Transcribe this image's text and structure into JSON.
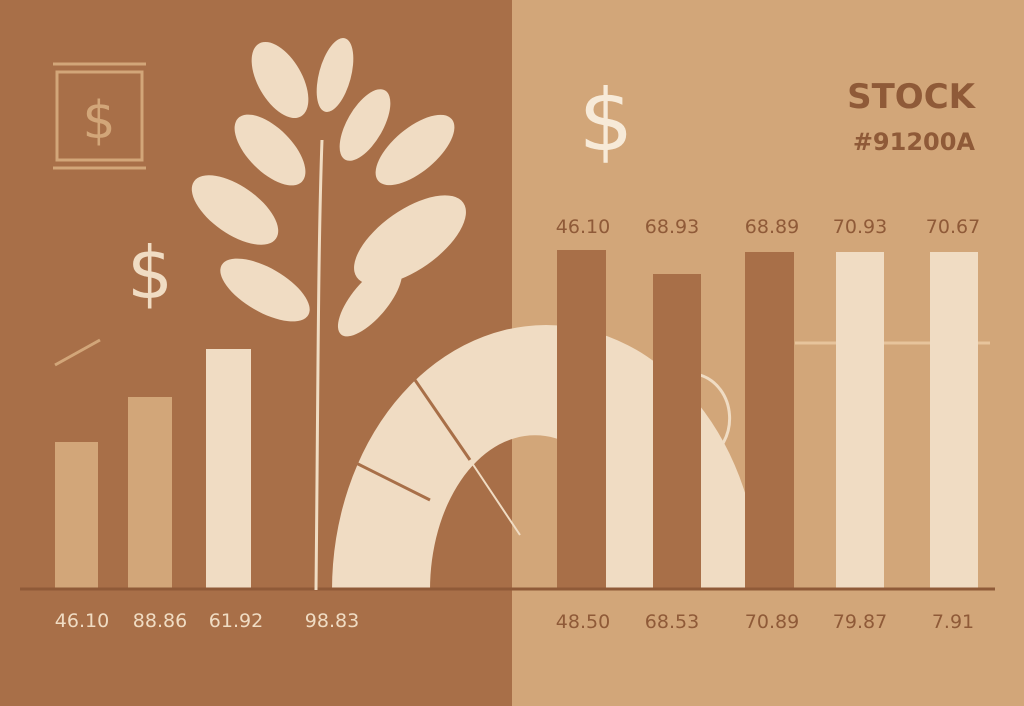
{
  "header": {
    "title": "STOCK",
    "code": "#91200A"
  },
  "dollar_signs": [
    "$",
    "$",
    "$"
  ],
  "left_labels": [
    "46.10",
    "88.86",
    "61.92",
    "98.83"
  ],
  "right_top_labels": [
    "46.10",
    "68.93",
    "68.89",
    "70.93",
    "70.67"
  ],
  "right_bottom_labels": [
    "48.50",
    "68.53",
    "70.89",
    "79.87",
    "7.91"
  ]
}
